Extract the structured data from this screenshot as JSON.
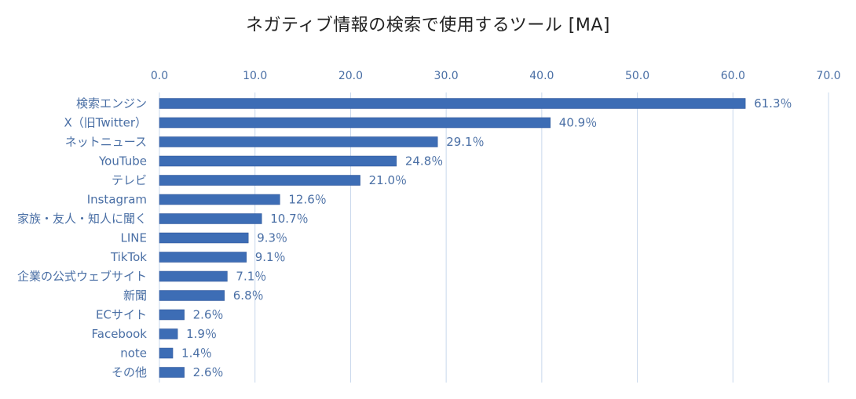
{
  "chart_data": {
    "type": "bar",
    "orientation": "horizontal",
    "title": "ネガティブ情報の検索で使用するツール [MA]",
    "xlabel": "",
    "ylabel": "",
    "xlim": [
      0,
      70
    ],
    "ticks": [
      "0.0",
      "10.0",
      "20.0",
      "30.0",
      "40.0",
      "50.0",
      "60.0",
      "70.0"
    ],
    "tick_values": [
      0,
      10,
      20,
      30,
      40,
      50,
      60,
      70
    ],
    "axis_position": "top",
    "grid": true,
    "categories": [
      "検索エンジン",
      "X（旧Twitter）",
      "ネットニュース",
      "YouTube",
      "テレビ",
      "Instagram",
      "家族・友人・知人に聞く",
      "LINE",
      "TikTok",
      "企業の公式ウェブサイト",
      "新聞",
      "ECサイト",
      "Facebook",
      "note",
      "その他"
    ],
    "values": [
      61.3,
      40.9,
      29.1,
      24.8,
      21.0,
      12.6,
      10.7,
      9.3,
      9.1,
      7.1,
      6.8,
      2.6,
      1.9,
      1.4,
      2.6
    ],
    "value_labels": [
      "61.3％",
      "40.9％",
      "29.1％",
      "24.8％",
      "21.0％",
      "12.6％",
      "10.7％",
      "9.3％",
      "9.1％",
      "7.1％",
      "6.8％",
      "2.6％",
      "1.9％",
      "1.4％",
      "2.6％"
    ],
    "colors": {
      "bar": "#3d6db5",
      "bar_edge": "#2e5596",
      "grid": "#c8d8ec",
      "text": "#4a6fa5"
    }
  }
}
